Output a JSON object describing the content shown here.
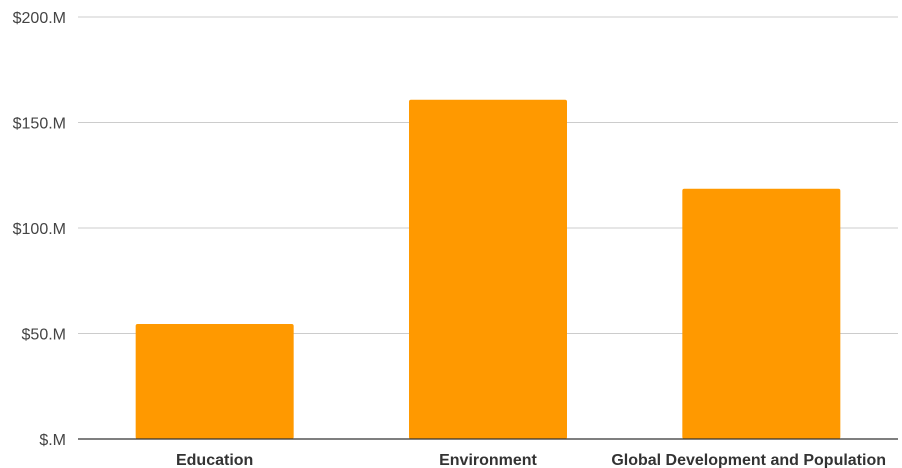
{
  "chart_data": {
    "type": "bar",
    "title": "",
    "xlabel": "",
    "ylabel": "",
    "categories": [
      "Education",
      "Environment",
      "Global Development and Population"
    ],
    "series": [
      {
        "values": [
          54.5,
          160.8,
          118.6
        ],
        "color": "#ff9900"
      }
    ],
    "ylim": [
      0,
      200
    ],
    "yticks": [
      0,
      50,
      100,
      150,
      200
    ],
    "ytick_labels": [
      "$.M",
      "$50.M",
      "$100.M",
      "$150.M",
      "$200.M"
    ],
    "grid": true,
    "legend": "none"
  }
}
